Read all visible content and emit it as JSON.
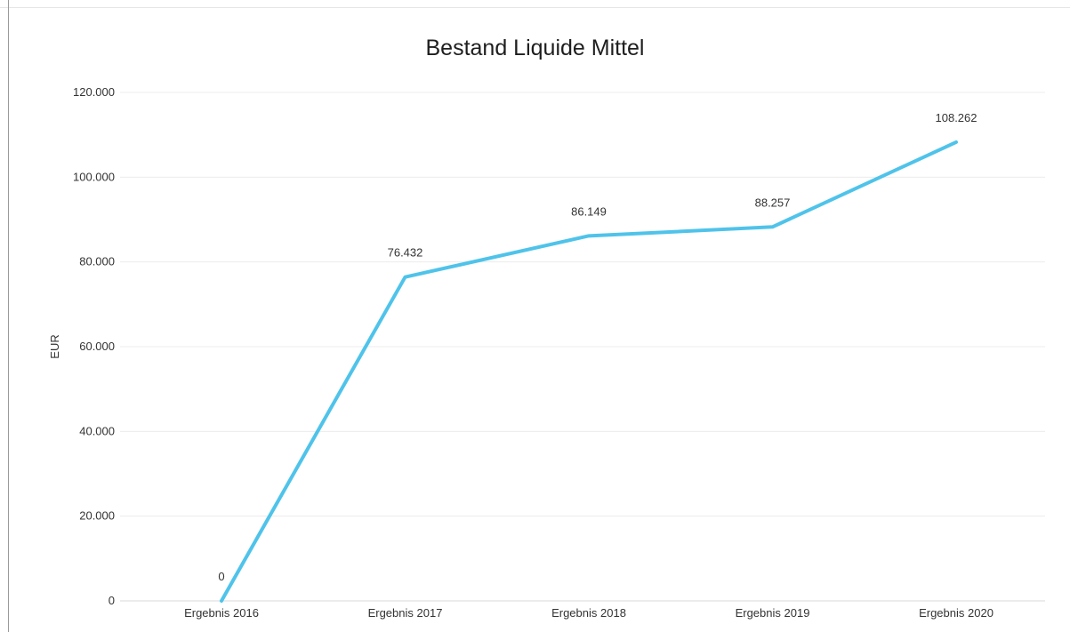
{
  "chart_data": {
    "type": "line",
    "title": "Bestand Liquide Mittel",
    "xlabel": "",
    "ylabel": "EUR",
    "categories": [
      "Ergebnis 2016",
      "Ergebnis 2017",
      "Ergebnis 2018",
      "Ergebnis 2019",
      "Ergebnis 2020"
    ],
    "series": [
      {
        "values": [
          0,
          76432,
          86149,
          88257,
          108262
        ],
        "data_labels": [
          "0",
          "76.432",
          "86.149",
          "88.257",
          "108.262"
        ],
        "color": "#4fc3ea"
      }
    ],
    "ylim": [
      0,
      120000
    ],
    "yticks": [
      0,
      20000,
      40000,
      60000,
      80000,
      100000,
      120000
    ],
    "ytick_labels": [
      "0",
      "20.000",
      "40.000",
      "60.000",
      "80.000",
      "100.000",
      "120.000"
    ],
    "grid": true,
    "legend": "none"
  }
}
